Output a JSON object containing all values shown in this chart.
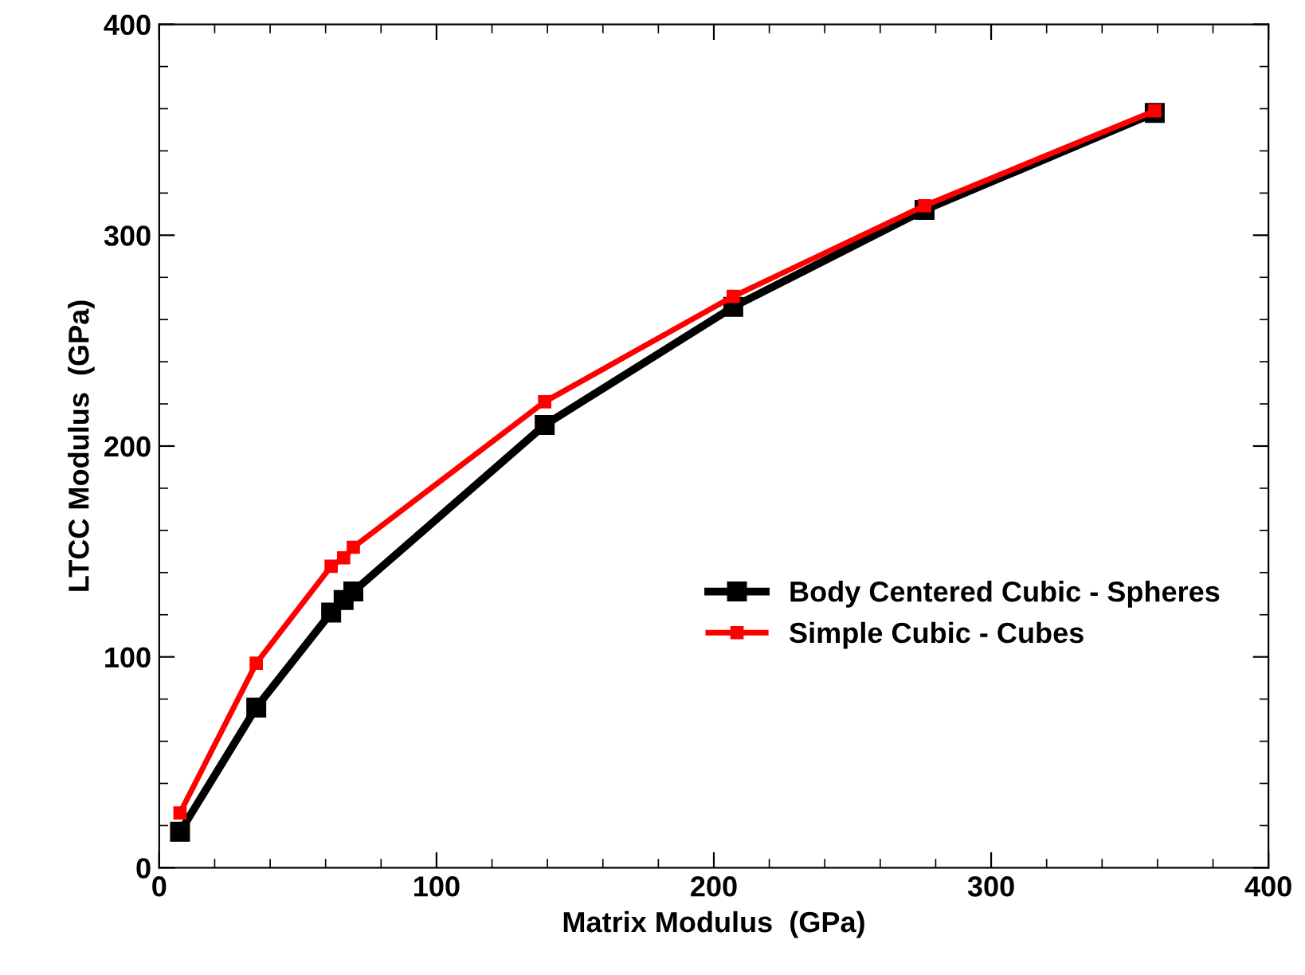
{
  "chart_data": {
    "type": "line",
    "xlabel": "Matrix Modulus  (GPa)",
    "ylabel": "LTCC Modulus  (GPa)",
    "x": [
      7.5,
      35,
      62,
      66.5,
      70,
      139,
      207,
      276,
      359
    ],
    "series": [
      {
        "name": "Body Centered Cubic - Spheres",
        "color": "#000000",
        "values": [
          17,
          76,
          121,
          127,
          131,
          210,
          266,
          312,
          358
        ]
      },
      {
        "name": "Simple Cubic - Cubes",
        "color": "#ff0000",
        "values": [
          26,
          97,
          143,
          147,
          152,
          221,
          271,
          314,
          359
        ]
      }
    ],
    "xlim": [
      0,
      400
    ],
    "ylim": [
      0,
      400
    ],
    "xticks": [
      0,
      100,
      200,
      300,
      400
    ],
    "yticks": [
      0,
      100,
      200,
      300,
      400
    ],
    "grid": false,
    "legend": "center right",
    "marker": "square",
    "line_style": "solid"
  }
}
